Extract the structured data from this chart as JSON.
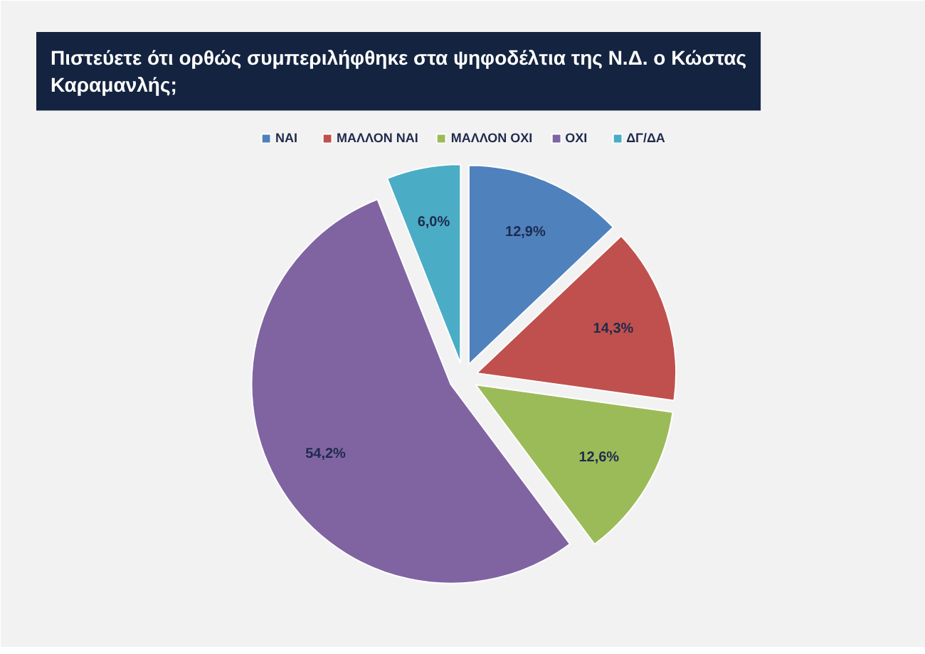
{
  "chart_data": {
    "type": "pie",
    "title": "Πιστεύετε ότι ορθώς συμπεριλήφθηκε στα ψηφοδέλτια της Ν.Δ. ο Κώστας Καραμανλής;",
    "categories": [
      "ΝΑΙ",
      "ΜΑΛΛΟΝ ΝΑΙ",
      "ΜΑΛΛΟΝ ΟΧΙ",
      "ΟΧΙ",
      "ΔΓ/ΔΑ"
    ],
    "values": [
      12.9,
      14.3,
      12.6,
      54.2,
      6.0
    ],
    "colors": [
      "#4f81bd",
      "#c0504d",
      "#9bbb59",
      "#8064a2",
      "#4bacc6"
    ],
    "value_labels": [
      "12,9%",
      "14,3%",
      "12,6%",
      "54,2%",
      "6,0%"
    ],
    "legend": "top"
  }
}
